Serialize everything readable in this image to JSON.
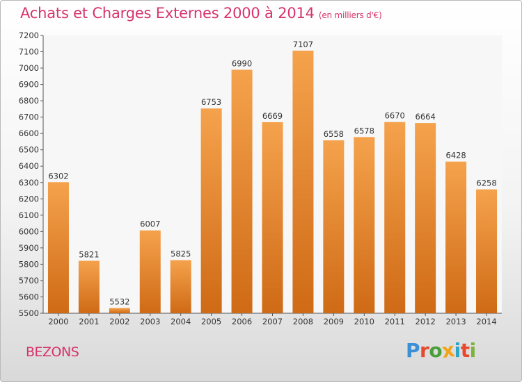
{
  "title": "Achats et Charges Externes 2000 à 2014",
  "subtitle": "(en milliers d'€)",
  "city": "BEZONS",
  "logo": {
    "text": "Proxiti",
    "colors": [
      "#3b8fd6",
      "#e8482b",
      "#4a9f3b",
      "#f3a31a",
      "#2aa6c9",
      "#e8482b",
      "#7bb33b"
    ]
  },
  "colors": {
    "bar_top": "#f5a24c",
    "bar_bottom": "#cf6a16",
    "text": "#333333",
    "accent": "#d6336c"
  },
  "chart_data": {
    "type": "bar",
    "categories": [
      "2000",
      "2001",
      "2002",
      "2003",
      "2004",
      "2005",
      "2006",
      "2007",
      "2008",
      "2009",
      "2010",
      "2011",
      "2012",
      "2013",
      "2014"
    ],
    "values": [
      6302,
      5821,
      5532,
      6007,
      5825,
      6753,
      6990,
      6669,
      7107,
      6558,
      6578,
      6670,
      6664,
      6428,
      6258
    ],
    "ylim": [
      5500,
      7200
    ],
    "yticks": [
      5500,
      5600,
      5700,
      5800,
      5900,
      6000,
      6100,
      6200,
      6300,
      6400,
      6500,
      6600,
      6700,
      6800,
      6900,
      7000,
      7100,
      7200
    ],
    "grid": false,
    "xlabel": "",
    "ylabel": ""
  }
}
